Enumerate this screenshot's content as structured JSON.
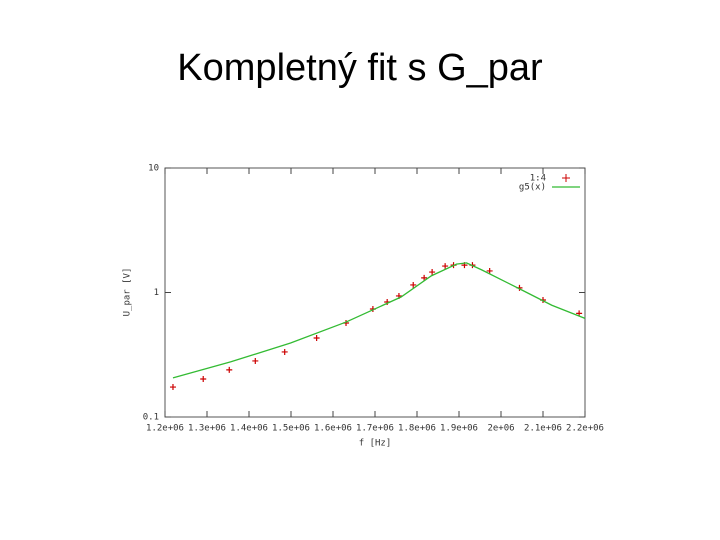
{
  "chart_data": {
    "type": "line",
    "title": "Kompletný fit s G_par",
    "x_label": "f [Hz]",
    "y_label": "U_par [V]",
    "xlim": [
      1200000,
      2200000
    ],
    "xticks": [
      {
        "value": 1200000,
        "label": "1.2e+06"
      },
      {
        "value": 1300000,
        "label": "1.3e+06"
      },
      {
        "value": 1400000,
        "label": "1.4e+06"
      },
      {
        "value": 1500000,
        "label": "1.5e+06"
      },
      {
        "value": 1600000,
        "label": "1.6e+06"
      },
      {
        "value": 1700000,
        "label": "1.7e+06"
      },
      {
        "value": 1800000,
        "label": "1.8e+06"
      },
      {
        "value": 1900000,
        "label": "1.9e+06"
      },
      {
        "value": 2000000,
        "label": "2e+06"
      },
      {
        "value": 2100000,
        "label": "2.1e+06"
      },
      {
        "value": 2200000,
        "label": "2.2e+06"
      }
    ],
    "ylim": [
      0.1,
      10
    ],
    "yticks": [
      0.1,
      1,
      10
    ],
    "ylog": true,
    "legend": "top-right",
    "series": [
      {
        "name": "1:4",
        "color": "#cc0000",
        "marker": "+",
        "x": [
          1219000,
          1291000,
          1353000,
          1415000,
          1485000,
          1561000,
          1631000,
          1695000,
          1729000,
          1757000,
          1791000,
          1817000,
          1836000,
          1867000,
          1887000,
          1913000,
          1932000,
          1973000,
          2044000,
          2100000,
          2186000
        ],
        "values": [
          0.174,
          0.202,
          0.239,
          0.282,
          0.333,
          0.431,
          0.569,
          0.737,
          0.839,
          0.938,
          1.15,
          1.31,
          1.46,
          1.63,
          1.66,
          1.66,
          1.66,
          1.49,
          1.09,
          0.87,
          0.68
        ]
      },
      {
        "name": "g5(x)",
        "color": "#33bb33",
        "marker": "line",
        "x": [
          1219000,
          1356000,
          1499000,
          1631000,
          1762000,
          1834000,
          1894000,
          1918000,
          1954000,
          2049000,
          2121000,
          2200000
        ],
        "values": [
          0.206,
          0.277,
          0.393,
          0.579,
          0.92,
          1.36,
          1.69,
          1.73,
          1.52,
          1.05,
          0.79,
          0.62
        ]
      }
    ]
  }
}
